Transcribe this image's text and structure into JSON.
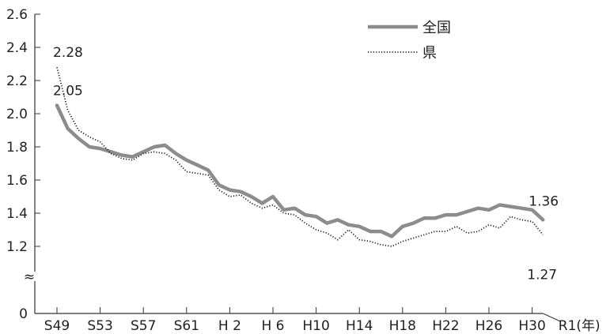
{
  "chart_data": {
    "type": "line",
    "ylim": [
      0,
      2.6
    ],
    "y_ticks": [
      "0",
      "1.2",
      "1.4",
      "1.6",
      "1.8",
      "2.0",
      "2.2",
      "2.4",
      "2.6"
    ],
    "axis_break_symbol": "≈",
    "x_tick_labels": [
      "S49",
      "S53",
      "S57",
      "S61",
      "H 2",
      "H 6",
      "H10",
      "H14",
      "H18",
      "H22",
      "H26",
      "H30",
      "R1(年)"
    ],
    "x_tick_years": [
      1974,
      1978,
      1982,
      1986,
      1990,
      1994,
      1998,
      2002,
      2006,
      2010,
      2014,
      2018,
      2019
    ],
    "x": [
      1974,
      1975,
      1976,
      1977,
      1978,
      1979,
      1980,
      1981,
      1982,
      1983,
      1984,
      1985,
      1986,
      1987,
      1988,
      1989,
      1990,
      1991,
      1992,
      1993,
      1994,
      1995,
      1996,
      1997,
      1998,
      1999,
      2000,
      2001,
      2002,
      2003,
      2004,
      2005,
      2006,
      2007,
      2008,
      2009,
      2010,
      2011,
      2012,
      2013,
      2014,
      2015,
      2016,
      2017,
      2018,
      2019
    ],
    "series": [
      {
        "name": "全国",
        "color": "#8c8c8c",
        "style": "solid",
        "values": [
          2.05,
          1.91,
          1.85,
          1.8,
          1.79,
          1.77,
          1.75,
          1.74,
          1.77,
          1.8,
          1.81,
          1.76,
          1.72,
          1.69,
          1.66,
          1.57,
          1.54,
          1.53,
          1.5,
          1.46,
          1.5,
          1.42,
          1.43,
          1.39,
          1.38,
          1.34,
          1.36,
          1.33,
          1.32,
          1.29,
          1.29,
          1.26,
          1.32,
          1.34,
          1.37,
          1.37,
          1.39,
          1.39,
          1.41,
          1.43,
          1.42,
          1.45,
          1.44,
          1.43,
          1.42,
          1.36
        ]
      },
      {
        "name": "県",
        "color": "#222222",
        "style": "dotted",
        "values": [
          2.28,
          2.02,
          1.9,
          1.86,
          1.83,
          1.76,
          1.73,
          1.72,
          1.76,
          1.77,
          1.76,
          1.72,
          1.65,
          1.64,
          1.63,
          1.54,
          1.5,
          1.51,
          1.46,
          1.43,
          1.45,
          1.4,
          1.39,
          1.34,
          1.3,
          1.28,
          1.24,
          1.3,
          1.24,
          1.23,
          1.21,
          1.2,
          1.23,
          1.25,
          1.27,
          1.29,
          1.29,
          1.32,
          1.28,
          1.29,
          1.33,
          1.31,
          1.38,
          1.36,
          1.35,
          1.27
        ]
      }
    ],
    "data_labels": [
      {
        "text": "2.28",
        "series": 1,
        "index": 0
      },
      {
        "text": "2.05",
        "series": 0,
        "index": 0
      },
      {
        "text": "1.36",
        "series": 0,
        "index": 45
      },
      {
        "text": "1.27",
        "series": 1,
        "index": 45
      }
    ],
    "legend": {
      "placement": "top-right",
      "entries": [
        "全国",
        "県"
      ]
    },
    "grid": false
  }
}
